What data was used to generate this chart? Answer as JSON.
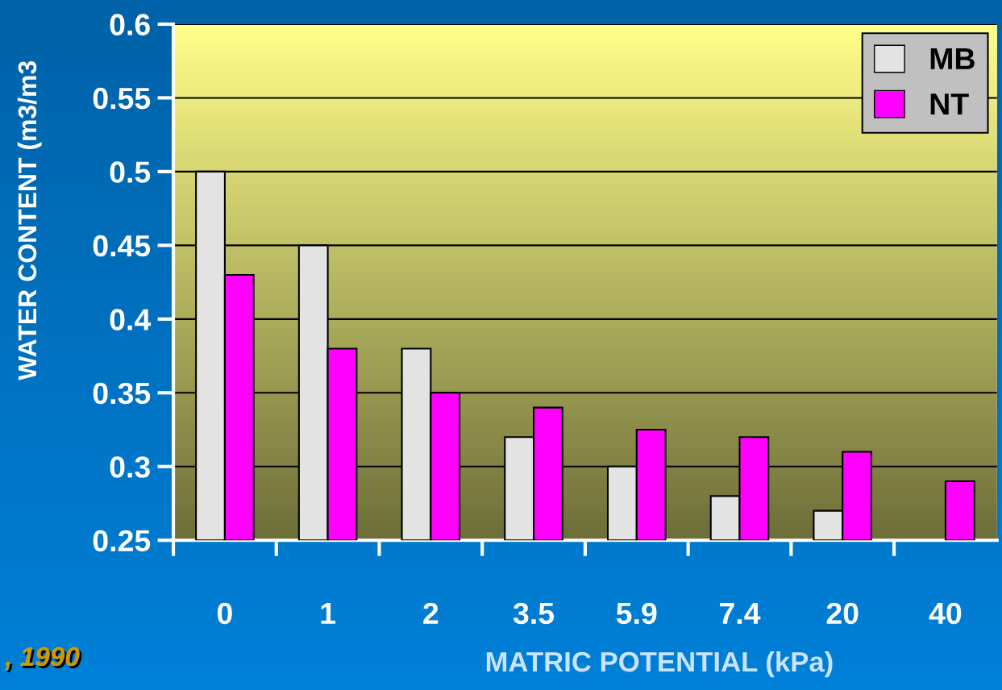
{
  "chart_data": {
    "type": "bar",
    "xlabel": "MATRIC POTENTIAL (kPa)",
    "ylabel": "WATER CONTENT (m3/m3",
    "categories": [
      "0",
      "1",
      "2",
      "3.5",
      "5.9",
      "7.4",
      "20",
      "40"
    ],
    "series": [
      {
        "name": "MB",
        "color": "#e3e3e3",
        "values": [
          0.5,
          0.45,
          0.38,
          0.32,
          0.3,
          0.28,
          0.27,
          null
        ]
      },
      {
        "name": "NT",
        "color": "#ff00ff",
        "values": [
          0.43,
          0.38,
          0.35,
          0.34,
          0.325,
          0.32,
          0.31,
          0.29
        ]
      }
    ],
    "ylim": [
      0.25,
      0.6
    ],
    "yticks": [
      0.25,
      0.3,
      0.35,
      0.4,
      0.45,
      0.5,
      0.55,
      0.6
    ],
    "grid": "y",
    "legend": "top right",
    "annotations": [
      ", 1990"
    ]
  }
}
